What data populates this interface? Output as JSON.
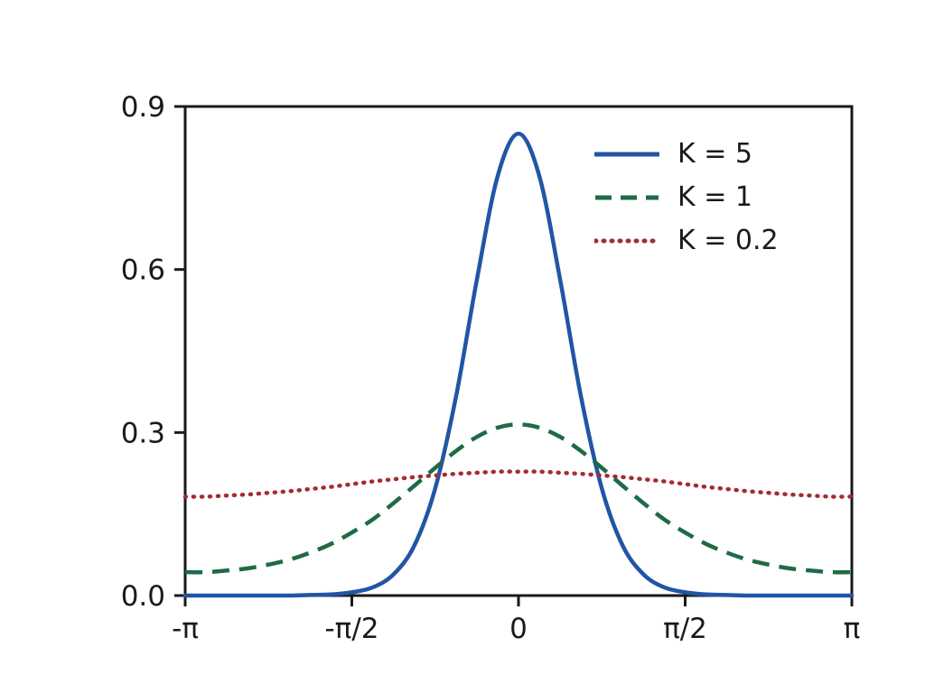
{
  "figure": {
    "background": "#ffffff"
  },
  "axes": {
    "color": "#1a1a1a",
    "text_color": "#1a1a1a"
  },
  "chart_data": {
    "type": "line",
    "title": "",
    "xlabel": "",
    "ylabel": "",
    "xlim": [
      -3.1416,
      3.1416
    ],
    "ylim": [
      0,
      0.9
    ],
    "grid": false,
    "legend_position": "upper right",
    "x_tick_values": [
      -3.1416,
      -1.5708,
      0,
      1.5708,
      3.1416
    ],
    "x_tick_labels": [
      "-π",
      "-π/2",
      "0",
      "π/2",
      "π"
    ],
    "y_tick_values": [
      0,
      0.3,
      0.6,
      0.9
    ],
    "y_tick_labels": [
      "0.0",
      "0.3",
      "0.6",
      "0.9"
    ],
    "x": [
      -3.1416,
      -2.9452,
      -2.7489,
      -2.5525,
      -2.3562,
      -2.1598,
      -1.9635,
      -1.7671,
      -1.5708,
      -1.3744,
      -1.1781,
      -0.9817,
      -0.7854,
      -0.589,
      -0.3927,
      -0.1963,
      0,
      0.1963,
      0.3927,
      0.589,
      0.7854,
      0.9817,
      1.1781,
      1.3744,
      1.5708,
      1.7671,
      1.9635,
      2.1598,
      2.3562,
      2.5525,
      2.7489,
      2.9452,
      3.1416
    ],
    "series": [
      {
        "name": "K = 5",
        "color": "#2155a5",
        "style": "solid",
        "values": [
          0,
          0,
          0,
          0,
          0,
          0,
          0.001,
          0.002,
          0.006,
          0.015,
          0.039,
          0.092,
          0.197,
          0.366,
          0.581,
          0.772,
          0.85,
          0.772,
          0.581,
          0.366,
          0.197,
          0.092,
          0.039,
          0.015,
          0.006,
          0.002,
          0.001,
          0,
          0,
          0,
          0,
          0,
          0
        ]
      },
      {
        "name": "K = 1",
        "color": "#1e6b45",
        "style": "dashed",
        "values": [
          0.043,
          0.043,
          0.046,
          0.05,
          0.057,
          0.066,
          0.079,
          0.095,
          0.116,
          0.14,
          0.17,
          0.202,
          0.235,
          0.266,
          0.292,
          0.309,
          0.315,
          0.309,
          0.292,
          0.266,
          0.235,
          0.202,
          0.17,
          0.14,
          0.116,
          0.095,
          0.079,
          0.066,
          0.057,
          0.05,
          0.046,
          0.043,
          0.043
        ]
      },
      {
        "name": "K = 0.2",
        "color": "#a32b35",
        "style": "dotted",
        "values": [
          0.182,
          0.182,
          0.184,
          0.186,
          0.189,
          0.192,
          0.196,
          0.2,
          0.205,
          0.21,
          0.214,
          0.218,
          0.221,
          0.224,
          0.226,
          0.228,
          0.228,
          0.228,
          0.226,
          0.224,
          0.221,
          0.218,
          0.214,
          0.21,
          0.205,
          0.2,
          0.196,
          0.192,
          0.189,
          0.186,
          0.184,
          0.182,
          0.182
        ]
      }
    ]
  }
}
